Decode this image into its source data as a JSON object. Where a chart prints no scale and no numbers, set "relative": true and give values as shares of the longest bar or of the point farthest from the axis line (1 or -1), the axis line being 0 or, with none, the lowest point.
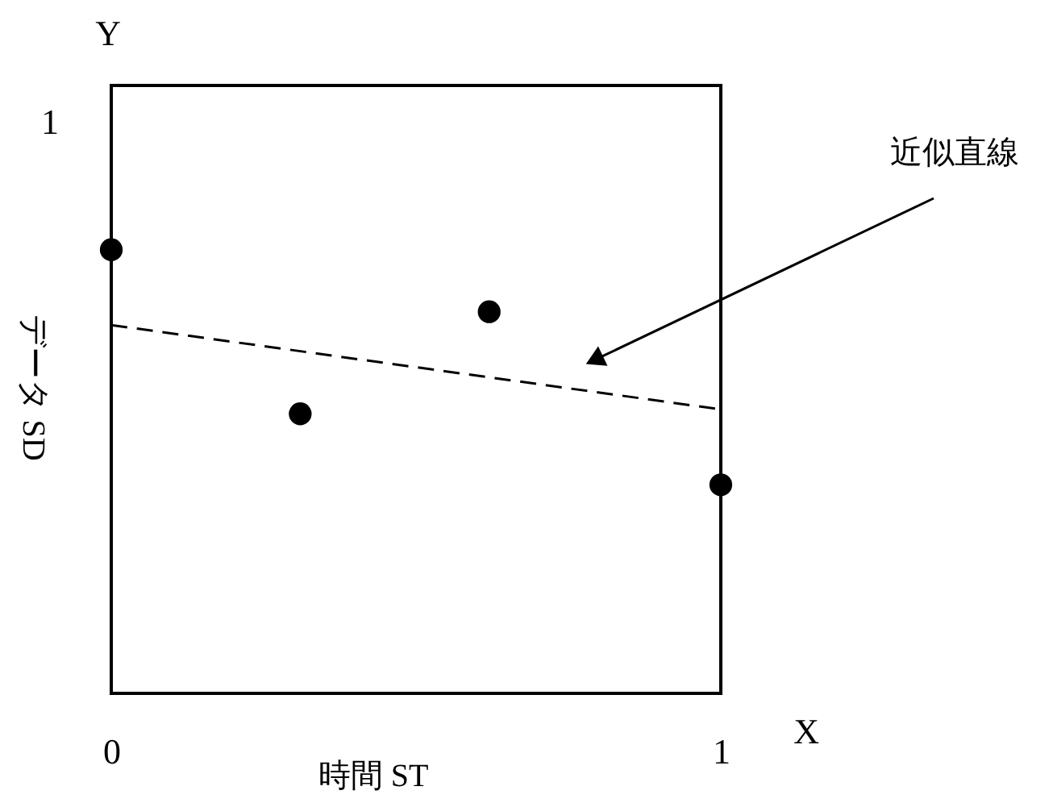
{
  "chart_data": {
    "type": "scatter",
    "xlabel": "時間 ST",
    "ylabel": "データ SD",
    "relative": true,
    "x": [
      0,
      0.31,
      0.62,
      1
    ],
    "series": [
      {
        "color": "#000000",
        "marker": "circle",
        "values": [
          1,
          0.63,
          0.86,
          0.47
        ]
      },
      {
        "type": "line",
        "color": "#000000",
        "line_style": "dashed",
        "x": [
          0,
          1
        ],
        "values": [
          0.83,
          0.64
        ]
      }
    ],
    "xlim": [
      0,
      1
    ],
    "xticks": [
      0,
      1
    ],
    "annotations": [
      "Y",
      "1",
      "X",
      "近似直線"
    ]
  }
}
